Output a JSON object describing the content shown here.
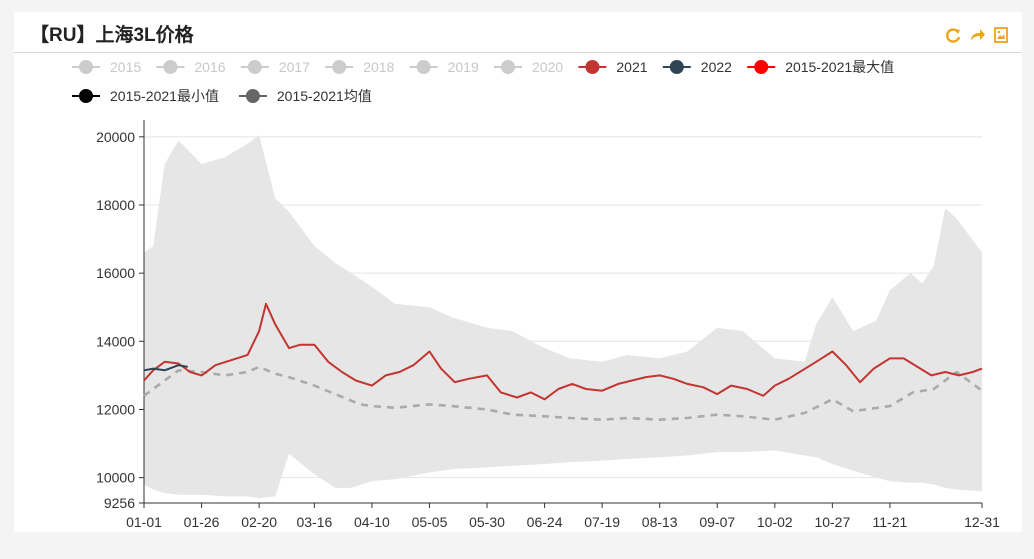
{
  "header": {
    "title": "【RU】上海3L价格",
    "icons": [
      "refresh-icon",
      "share-icon",
      "save-image-icon"
    ],
    "icon_color": "#f0a21b"
  },
  "chart_data": {
    "type": "line",
    "title": "【RU】上海3L价格",
    "x_tick_labels": [
      "01-01",
      "01-26",
      "02-20",
      "03-16",
      "04-10",
      "05-05",
      "05-30",
      "06-24",
      "07-19",
      "08-13",
      "09-07",
      "10-02",
      "10-27",
      "11-21",
      "12-31"
    ],
    "y_ticks": [
      9256,
      10000,
      12000,
      14000,
      16000,
      18000,
      20000
    ],
    "ylim": [
      9256,
      20200
    ],
    "grid": true,
    "legend_position": "top",
    "legend": [
      {
        "name": "2015",
        "color": "#cccccc",
        "active": false
      },
      {
        "name": "2016",
        "color": "#cccccc",
        "active": false
      },
      {
        "name": "2017",
        "color": "#cccccc",
        "active": false
      },
      {
        "name": "2018",
        "color": "#cccccc",
        "active": false
      },
      {
        "name": "2019",
        "color": "#cccccc",
        "active": false
      },
      {
        "name": "2020",
        "color": "#cccccc",
        "active": false
      },
      {
        "name": "2021",
        "color": "#c23531",
        "active": true
      },
      {
        "name": "2022",
        "color": "#2f4554",
        "active": true
      },
      {
        "name": "2015-2021最大值",
        "color": "#ff0000",
        "active": true
      },
      {
        "name": "2015-2021最小值",
        "color": "#000000",
        "active": true
      },
      {
        "name": "2015-2021均值",
        "color": "#666666",
        "active": true
      }
    ],
    "band": {
      "name_max": "2015-2021最大值",
      "name_min": "2015-2021最小值",
      "color": "#e6e6e6",
      "x": [
        "01-01",
        "01-05",
        "01-10",
        "01-16",
        "01-26",
        "02-05",
        "02-15",
        "02-20",
        "02-27",
        "03-05",
        "03-16",
        "03-25",
        "04-01",
        "04-10",
        "04-20",
        "05-05",
        "05-15",
        "05-30",
        "06-10",
        "06-24",
        "07-05",
        "07-19",
        "07-30",
        "08-13",
        "08-25",
        "09-07",
        "09-18",
        "10-02",
        "10-15",
        "10-20",
        "10-27",
        "11-05",
        "11-15",
        "11-21",
        "11-30",
        "12-05",
        "12-10",
        "12-15",
        "12-20",
        "12-31"
      ],
      "max": [
        16600,
        16800,
        19200,
        19900,
        19200,
        19400,
        19800,
        20050,
        18200,
        17800,
        16800,
        16300,
        16000,
        15600,
        15100,
        15000,
        14700,
        14400,
        14300,
        13800,
        13500,
        13400,
        13600,
        13500,
        13700,
        14400,
        14300,
        13500,
        13400,
        14500,
        15300,
        14300,
        14600,
        15500,
        16000,
        15700,
        16200,
        17900,
        17600,
        16600
      ],
      "min": [
        9800,
        9650,
        9550,
        9500,
        9500,
        9450,
        9450,
        9400,
        9450,
        10700,
        10100,
        9700,
        9700,
        9900,
        9950,
        10150,
        10250,
        10300,
        10350,
        10400,
        10450,
        10500,
        10550,
        10600,
        10650,
        10750,
        10750,
        10800,
        10650,
        10600,
        10400,
        10200,
        10000,
        9900,
        9850,
        9850,
        9800,
        9700,
        9650,
        9600
      ]
    },
    "series": [
      {
        "name": "2021",
        "color": "#c23531",
        "style": "solid",
        "x": [
          "01-01",
          "01-05",
          "01-10",
          "01-16",
          "01-21",
          "01-26",
          "02-01",
          "02-08",
          "02-15",
          "02-20",
          "02-23",
          "02-27",
          "03-05",
          "03-10",
          "03-16",
          "03-22",
          "03-28",
          "04-03",
          "04-10",
          "04-16",
          "04-22",
          "04-28",
          "05-05",
          "05-10",
          "05-16",
          "05-22",
          "05-30",
          "06-05",
          "06-12",
          "06-18",
          "06-24",
          "06-30",
          "07-06",
          "07-12",
          "07-19",
          "07-26",
          "08-01",
          "08-07",
          "08-13",
          "08-19",
          "08-25",
          "09-01",
          "09-07",
          "09-13",
          "09-20",
          "09-27",
          "10-02",
          "10-08",
          "10-14",
          "10-20",
          "10-27",
          "11-02",
          "11-08",
          "11-14",
          "11-21",
          "11-27",
          "12-03",
          "12-09",
          "12-15",
          "12-21",
          "12-27",
          "12-31"
        ],
        "y": [
          12850,
          13150,
          13400,
          13350,
          13100,
          13000,
          13300,
          13450,
          13600,
          14300,
          15100,
          14500,
          13800,
          13900,
          13900,
          13400,
          13100,
          12850,
          12700,
          13000,
          13100,
          13300,
          13700,
          13200,
          12800,
          12900,
          13000,
          12500,
          12350,
          12500,
          12300,
          12600,
          12750,
          12600,
          12550,
          12750,
          12850,
          12950,
          13000,
          12900,
          12750,
          12650,
          12450,
          12700,
          12600,
          12400,
          12700,
          12900,
          13150,
          13400,
          13700,
          13300,
          12800,
          13200,
          13500,
          13500,
          13250,
          13000,
          13100,
          13000,
          13100,
          13200
        ]
      },
      {
        "name": "2022",
        "color": "#2f4554",
        "style": "solid",
        "x": [
          "01-01",
          "01-05",
          "01-10",
          "01-16",
          "01-20"
        ],
        "y": [
          13150,
          13200,
          13150,
          13300,
          13250
        ]
      },
      {
        "name": "2015-2021均值",
        "color": "#aaaaaa",
        "style": "dashed",
        "x": [
          "01-01",
          "01-16",
          "01-26",
          "02-05",
          "02-15",
          "02-20",
          "02-27",
          "03-05",
          "03-16",
          "03-25",
          "04-05",
          "04-10",
          "04-20",
          "05-05",
          "05-15",
          "05-30",
          "06-10",
          "06-24",
          "07-05",
          "07-19",
          "07-30",
          "08-13",
          "08-25",
          "09-07",
          "09-18",
          "10-02",
          "10-15",
          "10-27",
          "11-05",
          "11-21",
          "12-01",
          "12-10",
          "12-20",
          "12-31"
        ],
        "y": [
          12400,
          13150,
          13100,
          13000,
          13100,
          13250,
          13050,
          12950,
          12700,
          12450,
          12150,
          12100,
          12050,
          12150,
          12100,
          12000,
          11850,
          11800,
          11750,
          11700,
          11750,
          11700,
          11750,
          11850,
          11800,
          11700,
          11900,
          12300,
          11950,
          12100,
          12500,
          12600,
          13100,
          12550
        ]
      }
    ]
  }
}
